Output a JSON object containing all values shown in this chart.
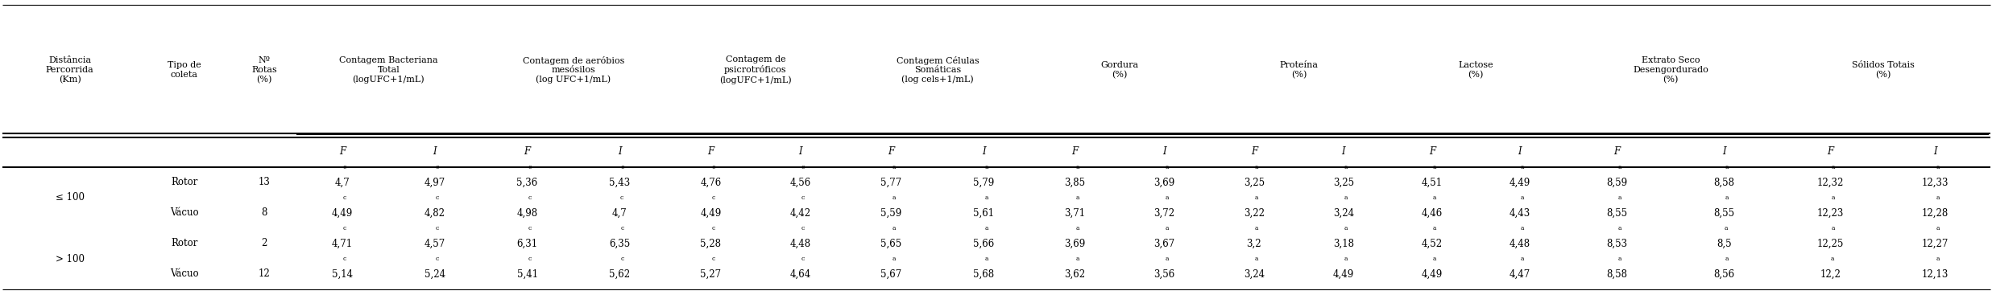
{
  "col_group_labels": [
    "Distância\nPercorrida\n(Km)",
    "Tipo de\ncoleta",
    "Nº\nRotas\n(%)",
    "Contagem Bacteriana\nTotal\n(logUFC+1/mL)",
    "Contagem de aeróbios\nmesósilos\n(log UFC+1/mL)",
    "Contagem de\npsicrotróficos\n(logUFC+1/mL)",
    "Contagem Células\nSomáticas\n(log cels+1/mL)",
    "Gordura\n(%)",
    "Proteína\n(%)",
    "Lactose\n(%)",
    "Extrato Seco\nDesengordurado\n(%)",
    "Sólidos Totais\n(%)"
  ],
  "col_group_spans": [
    1,
    1,
    1,
    2,
    2,
    2,
    2,
    2,
    2,
    2,
    2,
    2
  ],
  "fi_row": [
    "",
    "",
    "",
    "F",
    "I",
    "F",
    "I",
    "F",
    "I",
    "F",
    "I",
    "F",
    "I",
    "F",
    "I",
    "F",
    "I",
    "F",
    "I",
    "F",
    "I"
  ],
  "rows": [
    {
      "distancia": "≤ 100",
      "tipo": "Rotor",
      "n": "13",
      "vals": [
        {
          "v": "4,7",
          "sup": "c"
        },
        {
          "v": "4,97",
          "sup": "c"
        },
        {
          "v": "5,36",
          "sup": "c"
        },
        {
          "v": "5,43",
          "sup": "c"
        },
        {
          "v": "4,76",
          "sup": "c"
        },
        {
          "v": "4,56",
          "sup": "c"
        },
        {
          "v": "5,77",
          "sup": "a"
        },
        {
          "v": "5,79",
          "sup": "a"
        },
        {
          "v": "3,85",
          "sup": "a"
        },
        {
          "v": "3,69",
          "sup": "a"
        },
        {
          "v": "3,25",
          "sup": "a"
        },
        {
          "v": "3,25",
          "sup": "a"
        },
        {
          "v": "4,51",
          "sup": "a"
        },
        {
          "v": "4,49",
          "sup": "a"
        },
        {
          "v": "8,59",
          "sup": "a"
        },
        {
          "v": "8,58",
          "sup": "a"
        },
        {
          "v": "12,32",
          "sup": "a"
        },
        {
          "v": "12,33",
          "sup": "a"
        }
      ]
    },
    {
      "distancia": "",
      "tipo": "Vácuo",
      "n": "8",
      "vals": [
        {
          "v": "4,49",
          "sup": "c"
        },
        {
          "v": "4,82",
          "sup": "c"
        },
        {
          "v": "4,98",
          "sup": "c"
        },
        {
          "v": "4,7",
          "sup": "c"
        },
        {
          "v": "4,49",
          "sup": "c"
        },
        {
          "v": "4,42",
          "sup": "c"
        },
        {
          "v": "5,59",
          "sup": "a"
        },
        {
          "v": "5,61",
          "sup": "a"
        },
        {
          "v": "3,71",
          "sup": "a"
        },
        {
          "v": "3,72",
          "sup": "a"
        },
        {
          "v": "3,22",
          "sup": "a"
        },
        {
          "v": "3,24",
          "sup": "a"
        },
        {
          "v": "4,46",
          "sup": "a"
        },
        {
          "v": "4,43",
          "sup": "a"
        },
        {
          "v": "8,55",
          "sup": "a"
        },
        {
          "v": "8,55",
          "sup": "a"
        },
        {
          "v": "12,23",
          "sup": "a"
        },
        {
          "v": "12,28",
          "sup": "a"
        }
      ]
    },
    {
      "distancia": "> 100",
      "tipo": "Rotor",
      "n": "2",
      "vals": [
        {
          "v": "4,71",
          "sup": "c"
        },
        {
          "v": "4,57",
          "sup": "c"
        },
        {
          "v": "6,31",
          "sup": "c"
        },
        {
          "v": "6,35",
          "sup": "c"
        },
        {
          "v": "5,28",
          "sup": "c"
        },
        {
          "v": "4,48",
          "sup": "c"
        },
        {
          "v": "5,65",
          "sup": "a"
        },
        {
          "v": "5,66",
          "sup": "a"
        },
        {
          "v": "3,69",
          "sup": "a"
        },
        {
          "v": "3,67",
          "sup": "a"
        },
        {
          "v": "3,2",
          "sup": "a"
        },
        {
          "v": "3,18",
          "sup": "a"
        },
        {
          "v": "4,52",
          "sup": "a"
        },
        {
          "v": "4,48",
          "sup": "a"
        },
        {
          "v": "8,53",
          "sup": "a"
        },
        {
          "v": "8,5",
          "sup": "a"
        },
        {
          "v": "12,25",
          "sup": "a"
        },
        {
          "v": "12,27",
          "sup": "a"
        }
      ]
    },
    {
      "distancia": "",
      "tipo": "Vácuo",
      "n": "12",
      "vals": [
        {
          "v": "5,14",
          "sup": "c"
        },
        {
          "v": "5,24",
          "sup": "c"
        },
        {
          "v": "5,41",
          "sup": "c"
        },
        {
          "v": "5,62",
          "sup": "c"
        },
        {
          "v": "5,27",
          "sup": "c"
        },
        {
          "v": "4,64",
          "sup": "c"
        },
        {
          "v": "5,67",
          "sup": "a"
        },
        {
          "v": "5,68",
          "sup": "a"
        },
        {
          "v": "3,62",
          "sup": "a"
        },
        {
          "v": "3,56",
          "sup": "a"
        },
        {
          "v": "3,24",
          "sup": "a"
        },
        {
          "v": "4,49",
          "sup": "a"
        },
        {
          "v": "4,49",
          "sup": "a"
        },
        {
          "v": "4,47",
          "sup": "a"
        },
        {
          "v": "8,58",
          "sup": "a"
        },
        {
          "v": "8,56",
          "sup": "a"
        },
        {
          "v": "12,2",
          "sup": "a"
        },
        {
          "v": "12,13",
          "sup": "a"
        }
      ]
    }
  ],
  "bg_color": "#ffffff",
  "text_color": "#000000",
  "data_fontsize": 8.5,
  "header_fontsize": 8.0,
  "fi_fontsize": 8.5
}
